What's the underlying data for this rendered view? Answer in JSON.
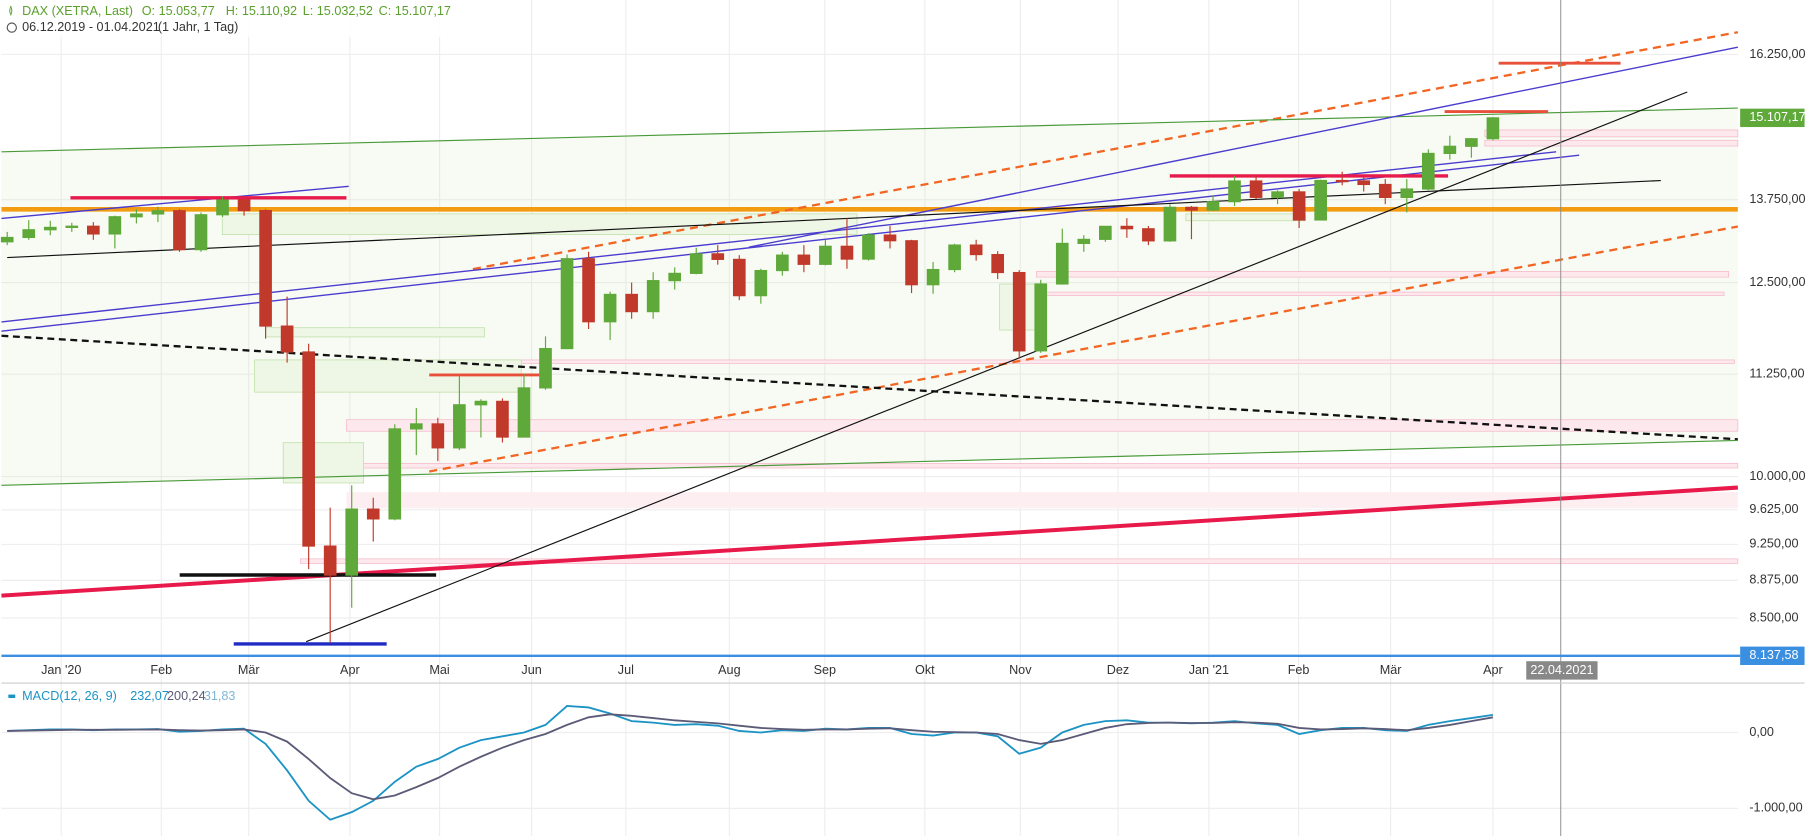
{
  "chart_data": [
    {
      "type": "candlestick",
      "title": "DAX (XETRA, Last)",
      "header": {
        "open": "O: 15.053,77",
        "high": "H: 15.110,92",
        "low": "L: 15.032,52",
        "close": "C: 15.107,17",
        "range": "06.12.2019 - 01.04.2021",
        "period": "(1 Jahr, 1 Tag)"
      },
      "log_scale": true,
      "ylim": [
        8130,
        17300
      ],
      "yticks": [
        {
          "value": 16250,
          "label": "16.250,00"
        },
        {
          "value": 13750,
          "label": "13.750,00"
        },
        {
          "value": 12500,
          "label": "12.500,00"
        },
        {
          "value": 11250,
          "label": "11.250,00"
        },
        {
          "value": 10000,
          "label": "10.000,00"
        },
        {
          "value": 9625,
          "label": "9.625,00"
        },
        {
          "value": 9250,
          "label": "9.250,00"
        },
        {
          "value": 8875,
          "label": "8.875,00"
        },
        {
          "value": 8500,
          "label": "8.500,00"
        }
      ],
      "xtick_labels": [
        "Jan '20",
        "Feb",
        "Mär",
        "Apr",
        "Mai",
        "Jun",
        "Jul",
        "Aug",
        "Sep",
        "Okt",
        "Nov",
        "Dez",
        "Jan '21",
        "Feb",
        "Mär",
        "Apr"
      ],
      "last_price": {
        "value": 15107.17,
        "label": "15.107,17"
      },
      "low_line": {
        "value": 8137.58,
        "label": "8.137,58"
      },
      "crosshair_label": "22.04.2021",
      "up_color": "#5fa83a",
      "down_color": "#c0392b",
      "grid": true,
      "open": [
        13100,
        13166,
        13283,
        13319,
        13337,
        13219,
        13483,
        13526,
        13577,
        12982,
        13514,
        13744,
        13579,
        11890,
        11541,
        9232,
        8929,
        9633,
        9525,
        10564,
        10625,
        10336,
        10861,
        10904,
        10465,
        11074,
        11586,
        12848,
        11949,
        12331,
        12089,
        12528,
        12633,
        12920,
        12838,
        12313,
        12674,
        12901,
        12765,
        13033,
        12842,
        13202,
        13116,
        12469,
        12689,
        13051,
        12909,
        12645,
        11556,
        12480,
        13076,
        13137,
        13335,
        13298,
        13114,
        13630,
        13587,
        13719,
        14049,
        13787,
        13874,
        13433,
        14057,
        14050,
        13993,
        13786,
        13920,
        14502,
        14621,
        14749
      ],
      "high": [
        13250,
        13430,
        13420,
        13390,
        13400,
        13500,
        13600,
        13640,
        13600,
        13550,
        13800,
        13800,
        13600,
        12300,
        11650,
        9650,
        9900,
        9760,
        10620,
        10820,
        10700,
        11230,
        10930,
        10940,
        11260,
        11750,
        12910,
        12950,
        12370,
        12500,
        12650,
        12720,
        13010,
        13050,
        12900,
        12700,
        12950,
        13050,
        13130,
        13460,
        13230,
        13340,
        13130,
        12800,
        13070,
        13130,
        12960,
        12680,
        12540,
        13300,
        13200,
        13340,
        13460,
        13340,
        13680,
        13650,
        13820,
        14130,
        14130,
        13900,
        13920,
        14070,
        14200,
        14110,
        14080,
        14080,
        14570,
        14800,
        14760,
        15120
      ],
      "low": [
        13050,
        13130,
        13200,
        13250,
        13130,
        13000,
        13380,
        13400,
        12950,
        12950,
        13480,
        13500,
        11720,
        11400,
        8990,
        8260,
        8600,
        9280,
        9510,
        10250,
        10180,
        10310,
        10460,
        10400,
        10460,
        11050,
        11580,
        11850,
        11700,
        11990,
        11990,
        12400,
        12620,
        12760,
        12250,
        12200,
        12600,
        12650,
        12750,
        12700,
        12820,
        13000,
        12350,
        12340,
        12650,
        12820,
        12550,
        11450,
        11530,
        12470,
        12950,
        13100,
        13160,
        13050,
        13100,
        13140,
        13570,
        13650,
        13760,
        13680,
        13310,
        13430,
        13980,
        13880,
        13680,
        13550,
        13900,
        14400,
        14430,
        14720
      ],
      "close": [
        13166,
        13283,
        13319,
        13337,
        13219,
        13483,
        13526,
        13577,
        12982,
        13514,
        13744,
        13579,
        11890,
        11541,
        9232,
        8929,
        9633,
        9525,
        10564,
        10625,
        10336,
        10861,
        10904,
        10465,
        11074,
        11586,
        12848,
        11949,
        12331,
        12089,
        12528,
        12633,
        12920,
        12838,
        12313,
        12674,
        12901,
        12765,
        13033,
        12842,
        13202,
        13116,
        12469,
        12689,
        13051,
        12909,
        12645,
        11556,
        12480,
        13076,
        13137,
        13335,
        13298,
        13114,
        13630,
        13587,
        13719,
        14049,
        13787,
        13874,
        13433,
        14057,
        14050,
        13993,
        13786,
        13920,
        14502,
        14621,
        14749,
        15107
      ]
    },
    {
      "type": "line",
      "title": "MACD(12, 26, 9)",
      "legend_values": [
        "232,07",
        "200,24",
        "31,83"
      ],
      "legend_colors": [
        "#1b93c4",
        "#5b5b78",
        "#7fb6d9"
      ],
      "ylim": [
        -1364,
        606
      ],
      "yticks": [
        {
          "value": 0,
          "label": "0,00"
        },
        {
          "value": -1000,
          "label": "-1.000,00"
        }
      ],
      "series": [
        {
          "color": "#1b93c4",
          "values": [
            20,
            30,
            40,
            40,
            30,
            40,
            40,
            45,
            10,
            20,
            40,
            50,
            -150,
            -500,
            -900,
            -1150,
            -1050,
            -900,
            -650,
            -450,
            -350,
            -200,
            -100,
            -50,
            0,
            100,
            350,
            330,
            250,
            150,
            130,
            100,
            110,
            90,
            20,
            0,
            30,
            20,
            50,
            40,
            60,
            60,
            -20,
            -40,
            0,
            0,
            -50,
            -280,
            -200,
            0,
            100,
            150,
            160,
            130,
            130,
            120,
            130,
            150,
            120,
            100,
            -20,
            30,
            60,
            60,
            30,
            20,
            100,
            150,
            190,
            232.07
          ]
        },
        {
          "color": "#5b5b78",
          "values": [
            20,
            25,
            30,
            35,
            35,
            35,
            38,
            40,
            30,
            25,
            30,
            40,
            0,
            -120,
            -350,
            -600,
            -800,
            -880,
            -830,
            -720,
            -600,
            -450,
            -320,
            -200,
            -100,
            -20,
            100,
            200,
            240,
            220,
            190,
            160,
            140,
            120,
            90,
            60,
            45,
            35,
            40,
            40,
            50,
            55,
            30,
            10,
            5,
            0,
            -20,
            -100,
            -150,
            -100,
            -20,
            60,
            110,
            125,
            130,
            125,
            125,
            135,
            130,
            115,
            60,
            40,
            45,
            55,
            45,
            30,
            60,
            100,
            150,
            200.24
          ]
        }
      ]
    }
  ]
}
